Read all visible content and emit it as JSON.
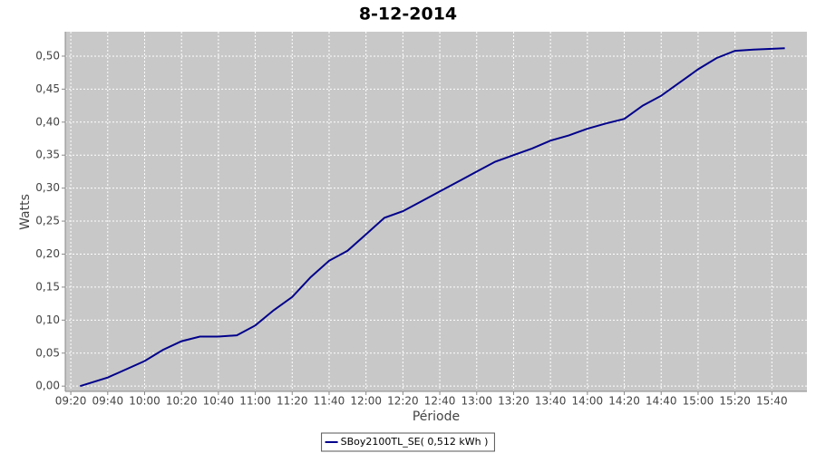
{
  "chart_data": {
    "type": "line",
    "title": "8-12-2014",
    "x_label": "Période",
    "y_label": "Watts",
    "x": [
      "09:25",
      "09:40",
      "10:00",
      "10:10",
      "10:20",
      "10:30",
      "10:40",
      "10:50",
      "11:00",
      "11:10",
      "11:20",
      "11:30",
      "11:40",
      "11:50",
      "12:00",
      "12:10",
      "12:20",
      "12:30",
      "12:40",
      "12:50",
      "13:00",
      "13:10",
      "13:20",
      "13:30",
      "13:40",
      "13:50",
      "14:00",
      "14:10",
      "14:20",
      "14:30",
      "14:40",
      "14:50",
      "15:00",
      "15:10",
      "15:20",
      "15:30",
      "15:40",
      "15:47"
    ],
    "series": [
      {
        "name": "SBoy2100TL_SE( 0,512 kWh )",
        "color": "#00008b",
        "values": [
          0.0,
          0.013,
          0.038,
          0.055,
          0.068,
          0.075,
          0.075,
          0.077,
          0.092,
          0.115,
          0.135,
          0.165,
          0.19,
          0.205,
          0.23,
          0.255,
          0.265,
          0.28,
          0.295,
          0.31,
          0.325,
          0.34,
          0.35,
          0.36,
          0.372,
          0.38,
          0.39,
          0.398,
          0.405,
          0.425,
          0.44,
          0.46,
          0.48,
          0.497,
          0.508,
          0.51,
          0.511,
          0.512
        ]
      }
    ],
    "xlim": [
      "09:17",
      "15:59"
    ],
    "xticks": [
      "09:20",
      "09:40",
      "10:00",
      "10:20",
      "10:40",
      "11:00",
      "11:20",
      "11:40",
      "12:00",
      "12:20",
      "12:40",
      "13:00",
      "13:20",
      "13:40",
      "14:00",
      "14:20",
      "14:40",
      "15:00",
      "15:20",
      "15:40"
    ],
    "ylim": [
      -0.008,
      0.537
    ],
    "yticks": [
      {
        "value": 0,
        "label": "0,00"
      },
      {
        "value": 0.05,
        "label": "0,05"
      },
      {
        "value": 0.1,
        "label": "0,10"
      },
      {
        "value": 0.15,
        "label": "0,15"
      },
      {
        "value": 0.2,
        "label": "0,20"
      },
      {
        "value": 0.25,
        "label": "0,25"
      },
      {
        "value": 0.3,
        "label": "0,30"
      },
      {
        "value": 0.35,
        "label": "0,35"
      },
      {
        "value": 0.4,
        "label": "0,40"
      },
      {
        "value": 0.45,
        "label": "0,45"
      },
      {
        "value": 0.5,
        "label": "0,50"
      }
    ],
    "grid": true,
    "plot_background": "#c8c8c8",
    "legend": "bottom"
  }
}
